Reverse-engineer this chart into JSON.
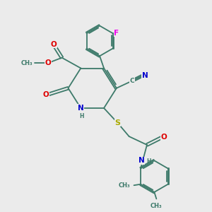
{
  "bg_color": "#ebebeb",
  "bond_color": "#3d7a6a",
  "lw": 1.3,
  "fs": 6.5,
  "colors": {
    "O": "#dd0000",
    "N": "#0000cc",
    "F": "#ee00ee",
    "S": "#aaaa00",
    "C": "#3d7a6a",
    "H": "#3d7a6a"
  },
  "xlim": [
    0,
    10
  ],
  "ylim": [
    0,
    10
  ]
}
